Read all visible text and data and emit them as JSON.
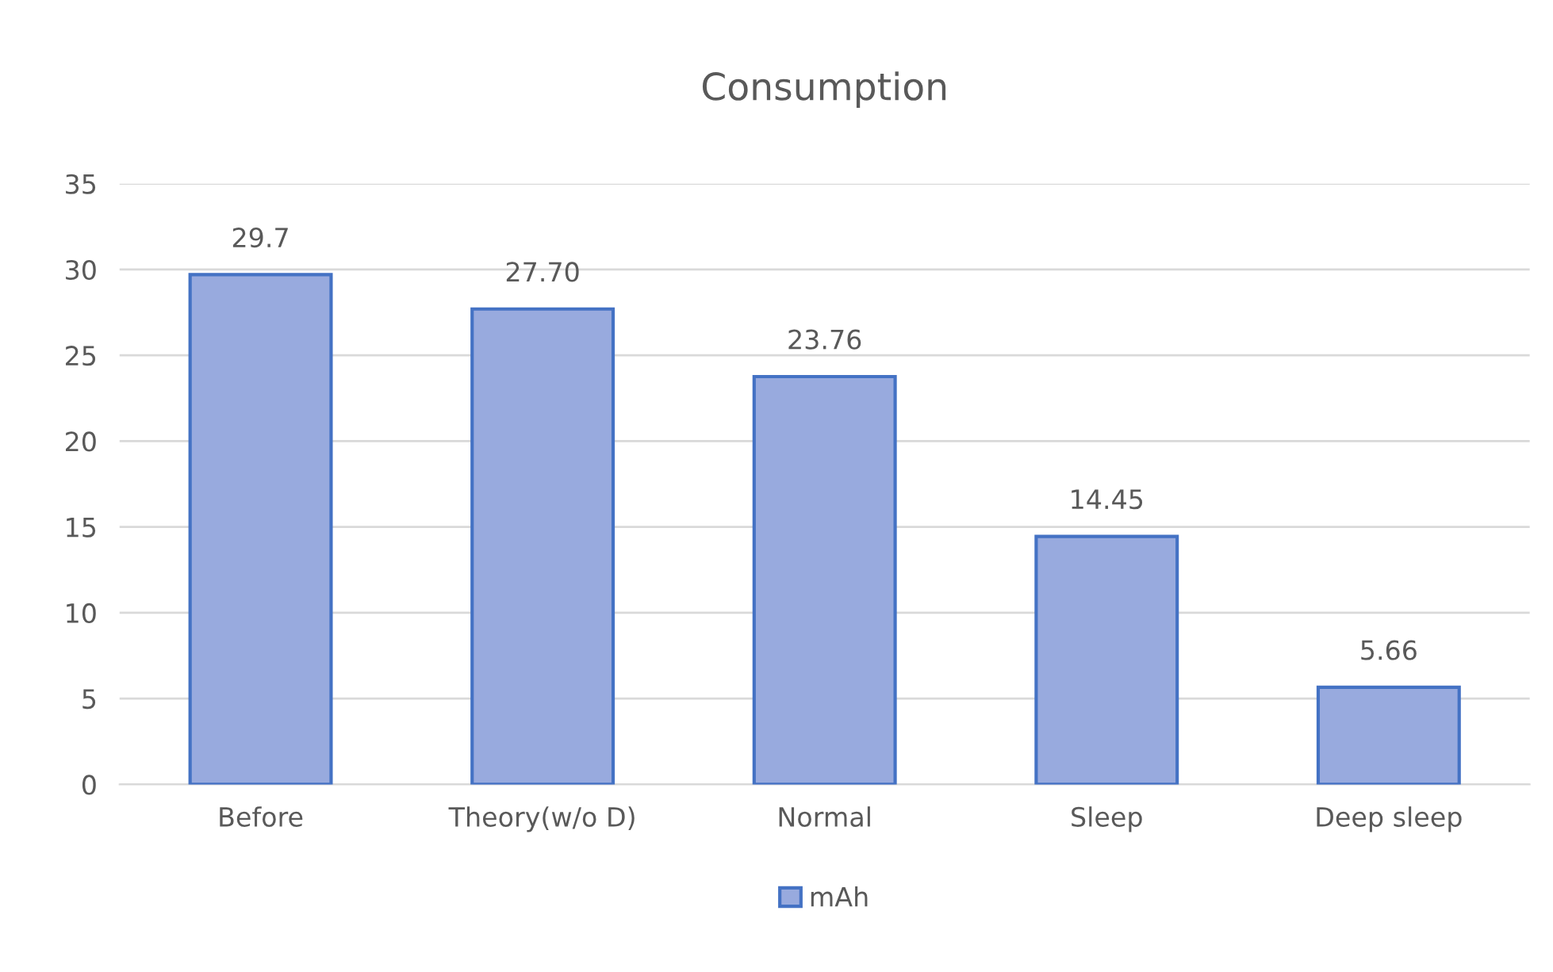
{
  "chart_data": {
    "type": "bar",
    "title": "Consumption",
    "categories": [
      "Before",
      "Theory(w/o D)",
      "Normal",
      "Sleep",
      "Deep sleep"
    ],
    "series": [
      {
        "name": "mAh",
        "color": "#98aade",
        "values": [
          29.7,
          27.7,
          23.76,
          14.45,
          5.66
        ],
        "value_labels": [
          "29.7",
          "27.70",
          "23.76",
          "14.45",
          "5.66"
        ]
      }
    ],
    "ylim": [
      0,
      35
    ],
    "yticks": [
      0,
      5,
      10,
      15,
      20,
      25,
      30,
      35
    ],
    "grid": "y",
    "legend": "bottom"
  }
}
